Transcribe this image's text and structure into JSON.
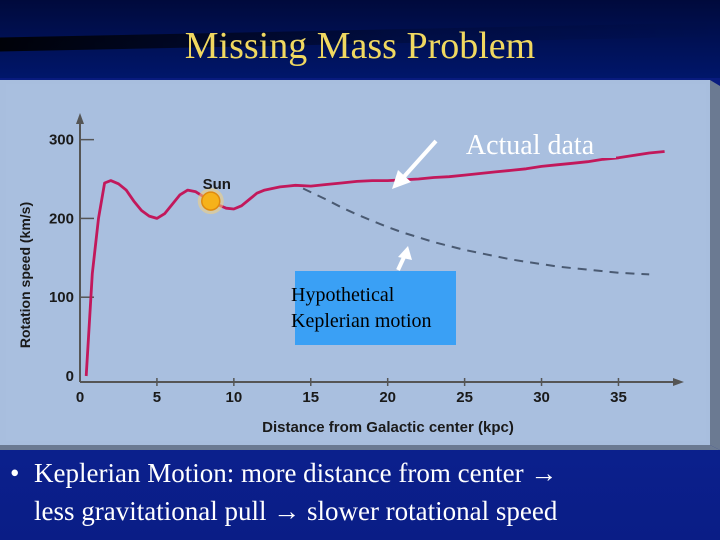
{
  "slide": {
    "title": "Missing Mass Problem",
    "bullet_line1": "Keplerian Motion: more distance from center",
    "bullet_line2": "less gravitational pull",
    "bullet_line3": "slower rotational speed",
    "bullet_marker": "•",
    "arrow_glyph": "→"
  },
  "colors": {
    "title": "#f0d860",
    "panel": "#a8bede",
    "curve": "#c2185b",
    "dashed": "#4a5a72",
    "sun": "#f6b21a",
    "callout_box": "#3aa0f5"
  },
  "chart_data": {
    "type": "line",
    "xlabel": "Distance from Galactic center (kpc)",
    "ylabel": "Rotation speed (km/s)",
    "xlim": [
      0,
      39
    ],
    "ylim": [
      0,
      330
    ],
    "x_ticks": [
      "0",
      "5",
      "10",
      "15",
      "20",
      "25",
      "30",
      "35"
    ],
    "x_tick_values": [
      0,
      5,
      10,
      15,
      20,
      25,
      30,
      35
    ],
    "y_ticks": [
      "0",
      "100",
      "200",
      "300"
    ],
    "y_tick_values": [
      0,
      100,
      200,
      300
    ],
    "sun_label": "Sun",
    "sun_point": {
      "x": 8.5,
      "y": 222
    },
    "series": [
      {
        "key": "actual",
        "x": [
          0.4,
          0.8,
          1.2,
          1.6,
          2,
          2.5,
          3,
          3.5,
          4,
          4.5,
          5,
          5.5,
          6,
          6.5,
          7,
          7.5,
          8,
          8.5,
          9,
          9.5,
          10,
          10.5,
          11,
          11.5,
          12,
          12.5,
          13,
          13.5,
          14,
          15,
          16,
          17,
          18,
          19,
          20,
          21,
          22,
          23,
          24,
          25,
          26,
          27,
          28,
          29,
          30,
          31,
          32,
          33,
          34,
          35,
          36,
          37,
          38
        ],
        "y": [
          0,
          130,
          200,
          245,
          248,
          244,
          236,
          222,
          210,
          203,
          200,
          206,
          218,
          230,
          236,
          234,
          228,
          222,
          217,
          213,
          212,
          216,
          224,
          232,
          236,
          238,
          240,
          241,
          242,
          241,
          243,
          245,
          247,
          248,
          248,
          249,
          250,
          252,
          253,
          255,
          257,
          259,
          261,
          263,
          266,
          268,
          270,
          272,
          275,
          277,
          280,
          283,
          285
        ]
      },
      {
        "key": "keplerian",
        "x": [
          14.5,
          16,
          17,
          18,
          19,
          20,
          21,
          22,
          23,
          24,
          25,
          26,
          27,
          28,
          29,
          30,
          31,
          32,
          33,
          34,
          35,
          36,
          37
        ],
        "y": [
          238,
          224,
          214,
          205,
          197,
          189,
          182,
          176,
          170,
          165,
          160,
          156,
          152,
          148,
          145,
          142,
          139,
          137,
          135,
          133,
          131,
          130,
          129
        ]
      }
    ],
    "annotations": [
      "Actual data",
      "Hypothetical Keplerian motion"
    ],
    "annotation_actual": "Actual data",
    "annotation_hypo_line1": "Hypothetical",
    "annotation_hypo_line2": "Keplerian motion"
  }
}
